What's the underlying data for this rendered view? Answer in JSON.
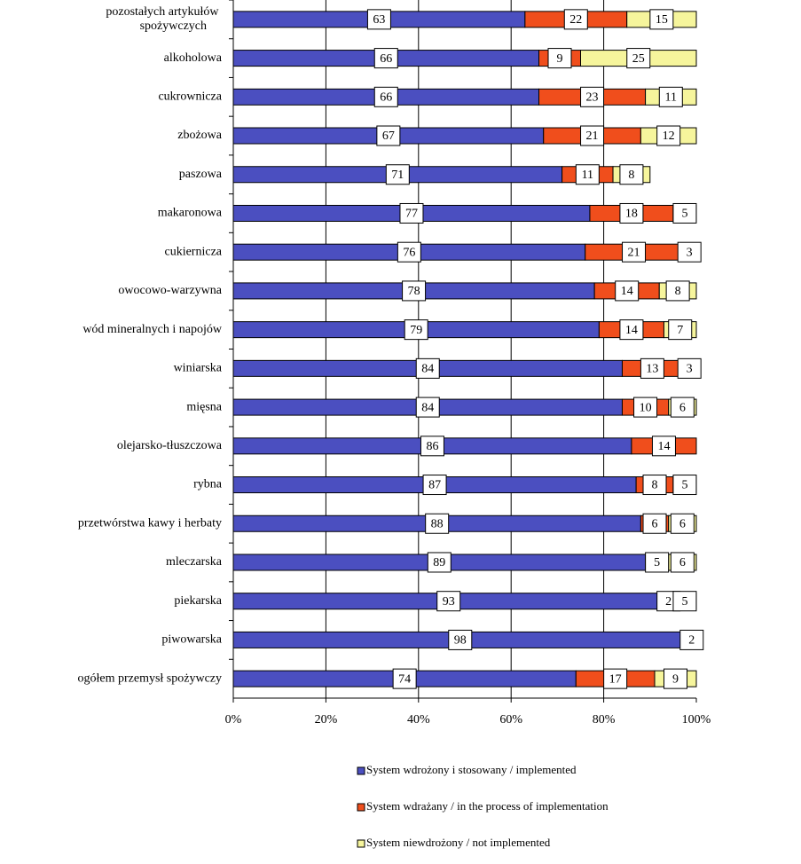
{
  "chart_data": {
    "type": "stacked-barh",
    "categories": [
      "pozostałych artykułów spożywczych",
      "alkoholowa",
      "cukrownicza",
      "zbożowa",
      "paszowa",
      "makaronowa",
      "cukiernicza",
      "owocowo-warzywna",
      "wód mineralnych i napojów",
      "winiarska",
      "mięsna",
      "olejarsko-tłuszczowa",
      "rybna",
      "przetwórstwa kawy i herbaty",
      "mleczarska",
      "piekarska",
      "piwowarska",
      "ogółem przemysł spożywczy"
    ],
    "series": [
      {
        "name": "System wdrożony i stosowany / implemented",
        "color": "#4b4fc0",
        "values": [
          63,
          66,
          66,
          67,
          71,
          77,
          76,
          78,
          79,
          84,
          84,
          86,
          87,
          88,
          89,
          93,
          98,
          74
        ]
      },
      {
        "name": "System wdrażany / in the process of implementation",
        "color": "#f04e1c",
        "values": [
          22,
          9,
          23,
          21,
          11,
          18,
          21,
          14,
          14,
          13,
          10,
          14,
          8,
          6,
          5,
          2,
          2,
          17
        ]
      },
      {
        "name": "System niewdrożony / not implemented",
        "color": "#f6f59c",
        "values": [
          15,
          25,
          11,
          12,
          8,
          5,
          3,
          8,
          7,
          3,
          6,
          null,
          5,
          6,
          6,
          5,
          null,
          9
        ]
      }
    ],
    "xlim": [
      0,
      100
    ],
    "xticks": [
      {
        "value": 0,
        "label": "0%"
      },
      {
        "value": 20,
        "label": "20%"
      },
      {
        "value": 40,
        "label": "40%"
      },
      {
        "value": 60,
        "label": "60%"
      },
      {
        "value": 80,
        "label": "80%"
      },
      {
        "value": 100,
        "label": "100%"
      }
    ],
    "grid": true,
    "legend": "bottom"
  }
}
